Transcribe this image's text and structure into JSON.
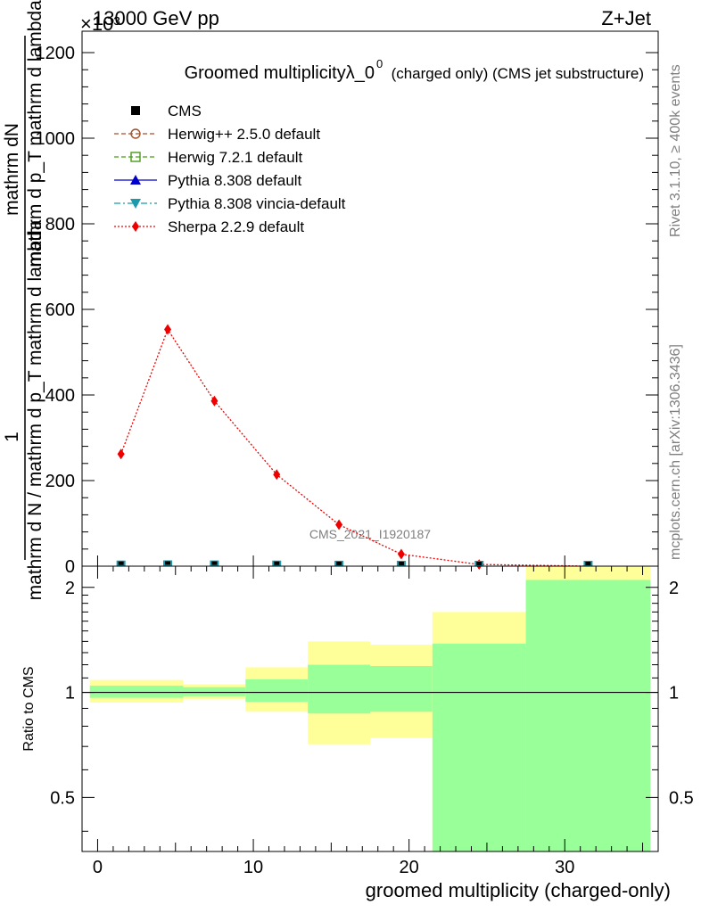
{
  "header": {
    "left": "13000 GeV pp",
    "right": "Z+Jet",
    "exponent_label": "×10³"
  },
  "side_labels": {
    "rivet": "Rivet 3.1.10, ≥ 400k events",
    "mcplots": "mcplots.cern.ch [arXiv:1306.3436]"
  },
  "watermark": "CMS_2021_I1920187",
  "main_title": {
    "text": "Groomed multiplicityλ_0",
    "superscript": "0",
    "suffix": "(charged only) (CMS jet substructure)"
  },
  "legend": [
    {
      "label": "CMS",
      "color": "#000000",
      "marker": "square-filled",
      "line": "none"
    },
    {
      "label": "Herwig++ 2.5.0 default",
      "color": "#a0522d",
      "marker": "circle-open",
      "line": "dashed"
    },
    {
      "label": "Herwig 7.2.1 default",
      "color": "#4a9a1a",
      "marker": "square-open",
      "line": "dashed"
    },
    {
      "label": "Pythia 8.308 default",
      "color": "#0000cc",
      "marker": "triangle-up",
      "line": "solid"
    },
    {
      "label": "Pythia 8.308 vincia-default",
      "color": "#1a9aaa",
      "marker": "triangle-down",
      "line": "dashdot"
    },
    {
      "label": "Sherpa 2.2.9 default",
      "color": "#ee0000",
      "marker": "diamond",
      "line": "dotted"
    }
  ],
  "chart_data": [
    {
      "type": "line",
      "title": "Groomed multiplicityλ_0^0 (charged only) (CMS jet substructure)",
      "ylabel_parts": [
        "mathrm dN",
        "1",
        "mathrm d p_T mathrm d lambda",
        "mathrm d N / mathrm d p_T mathrm d lambda"
      ],
      "ylim": [
        0,
        1250
      ],
      "yticks": [
        0,
        200,
        400,
        600,
        800,
        1000,
        1200
      ],
      "ytick_labels": [
        "0",
        "200",
        "400",
        "600",
        "800",
        "1000",
        "1200"
      ],
      "y_multiplier": "×10³",
      "xlim": [
        -1,
        36
      ],
      "log_y": false,
      "series": [
        {
          "name": "Sherpa 2.2.9 default",
          "color": "#ee0000",
          "x": [
            1.5,
            4.5,
            7.5,
            11.5,
            15.5,
            19.5,
            24.5,
            31.5
          ],
          "y": [
            262,
            553,
            386,
            214,
            97,
            28,
            4,
            0
          ]
        },
        {
          "name": "CMS",
          "color": "#000000",
          "x": [
            1.5,
            4.5,
            7.5,
            11.5,
            15.5,
            19.5,
            24.5,
            31.5
          ],
          "y": [
            0.6,
            1.1,
            0.8,
            0.5,
            0.2,
            0.06,
            0.01,
            0.0
          ]
        }
      ]
    },
    {
      "type": "area",
      "ylabel": "Ratio to CMS",
      "xlabel": "groomed multiplicity (charged-only)",
      "xlim": [
        -1,
        36
      ],
      "ylim": [
        0.35,
        2.3
      ],
      "log_y": true,
      "xticks": [
        0,
        10,
        20,
        30
      ],
      "xtick_labels": [
        "0",
        "10",
        "20",
        "30"
      ],
      "yticks": [
        0.5,
        1,
        2
      ],
      "ytick_labels": [
        "0.5",
        "1",
        "2"
      ],
      "bins": [
        {
          "lo": -0.5,
          "hi": 5.5,
          "green": [
            0.965,
            1.045
          ],
          "yellow": [
            0.935,
            1.085
          ]
        },
        {
          "lo": 5.5,
          "hi": 9.5,
          "green": [
            0.975,
            1.035
          ],
          "yellow": [
            0.955,
            1.055
          ]
        },
        {
          "lo": 9.5,
          "hi": 13.5,
          "green": [
            0.94,
            1.09
          ],
          "yellow": [
            0.88,
            1.18
          ]
        },
        {
          "lo": 13.5,
          "hi": 17.5,
          "green": [
            0.87,
            1.2
          ],
          "yellow": [
            0.71,
            1.4
          ]
        },
        {
          "lo": 17.5,
          "hi": 21.5,
          "green": [
            0.88,
            1.19
          ],
          "yellow": [
            0.74,
            1.37
          ]
        },
        {
          "lo": 21.5,
          "hi": 27.5,
          "green": [
            0.35,
            1.38
          ],
          "yellow": [
            0.35,
            1.7
          ]
        },
        {
          "lo": 27.5,
          "hi": 35.5,
          "green": [
            0.35,
            2.1
          ],
          "yellow": [
            0.35,
            2.3
          ]
        }
      ]
    }
  ]
}
